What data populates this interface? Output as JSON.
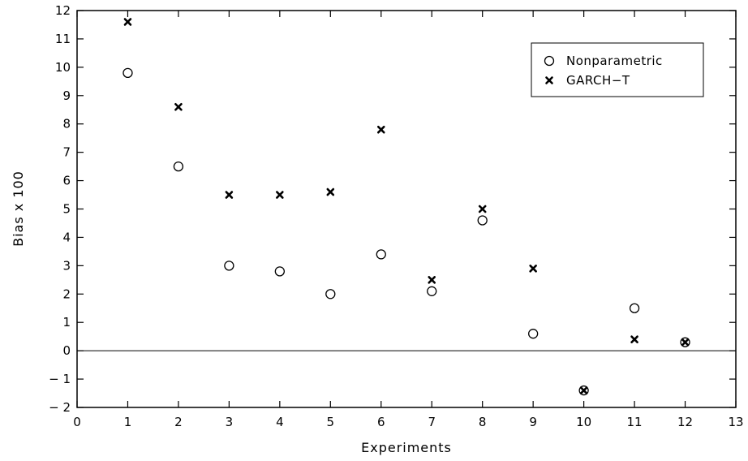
{
  "chart_data": {
    "type": "scatter",
    "title": "",
    "xlabel": "Experiments",
    "ylabel": "Bias  x  100",
    "xlim": [
      0,
      13
    ],
    "ylim": [
      -2,
      12
    ],
    "x_ticks": [
      0,
      1,
      2,
      3,
      4,
      5,
      6,
      7,
      8,
      9,
      10,
      11,
      12,
      13
    ],
    "y_ticks": [
      -2,
      -1,
      0,
      1,
      2,
      3,
      4,
      5,
      6,
      7,
      8,
      9,
      10,
      11,
      12
    ],
    "zero_line": true,
    "grid": false,
    "legend_position": "top-right",
    "series": [
      {
        "name": "Nonparametric",
        "marker": "circle",
        "x": [
          1,
          2,
          3,
          4,
          5,
          6,
          7,
          8,
          9,
          10,
          11,
          12
        ],
        "y": [
          9.8,
          6.5,
          3.0,
          2.8,
          2.0,
          3.4,
          2.1,
          4.6,
          0.6,
          -1.4,
          1.5,
          0.3
        ]
      },
      {
        "name": "GARCH−T",
        "marker": "x",
        "x": [
          1,
          2,
          3,
          4,
          5,
          6,
          7,
          8,
          9,
          10,
          11,
          12
        ],
        "y": [
          11.6,
          8.6,
          5.5,
          5.5,
          5.6,
          7.8,
          2.5,
          5.0,
          2.9,
          -1.4,
          0.4,
          0.3
        ]
      }
    ]
  }
}
